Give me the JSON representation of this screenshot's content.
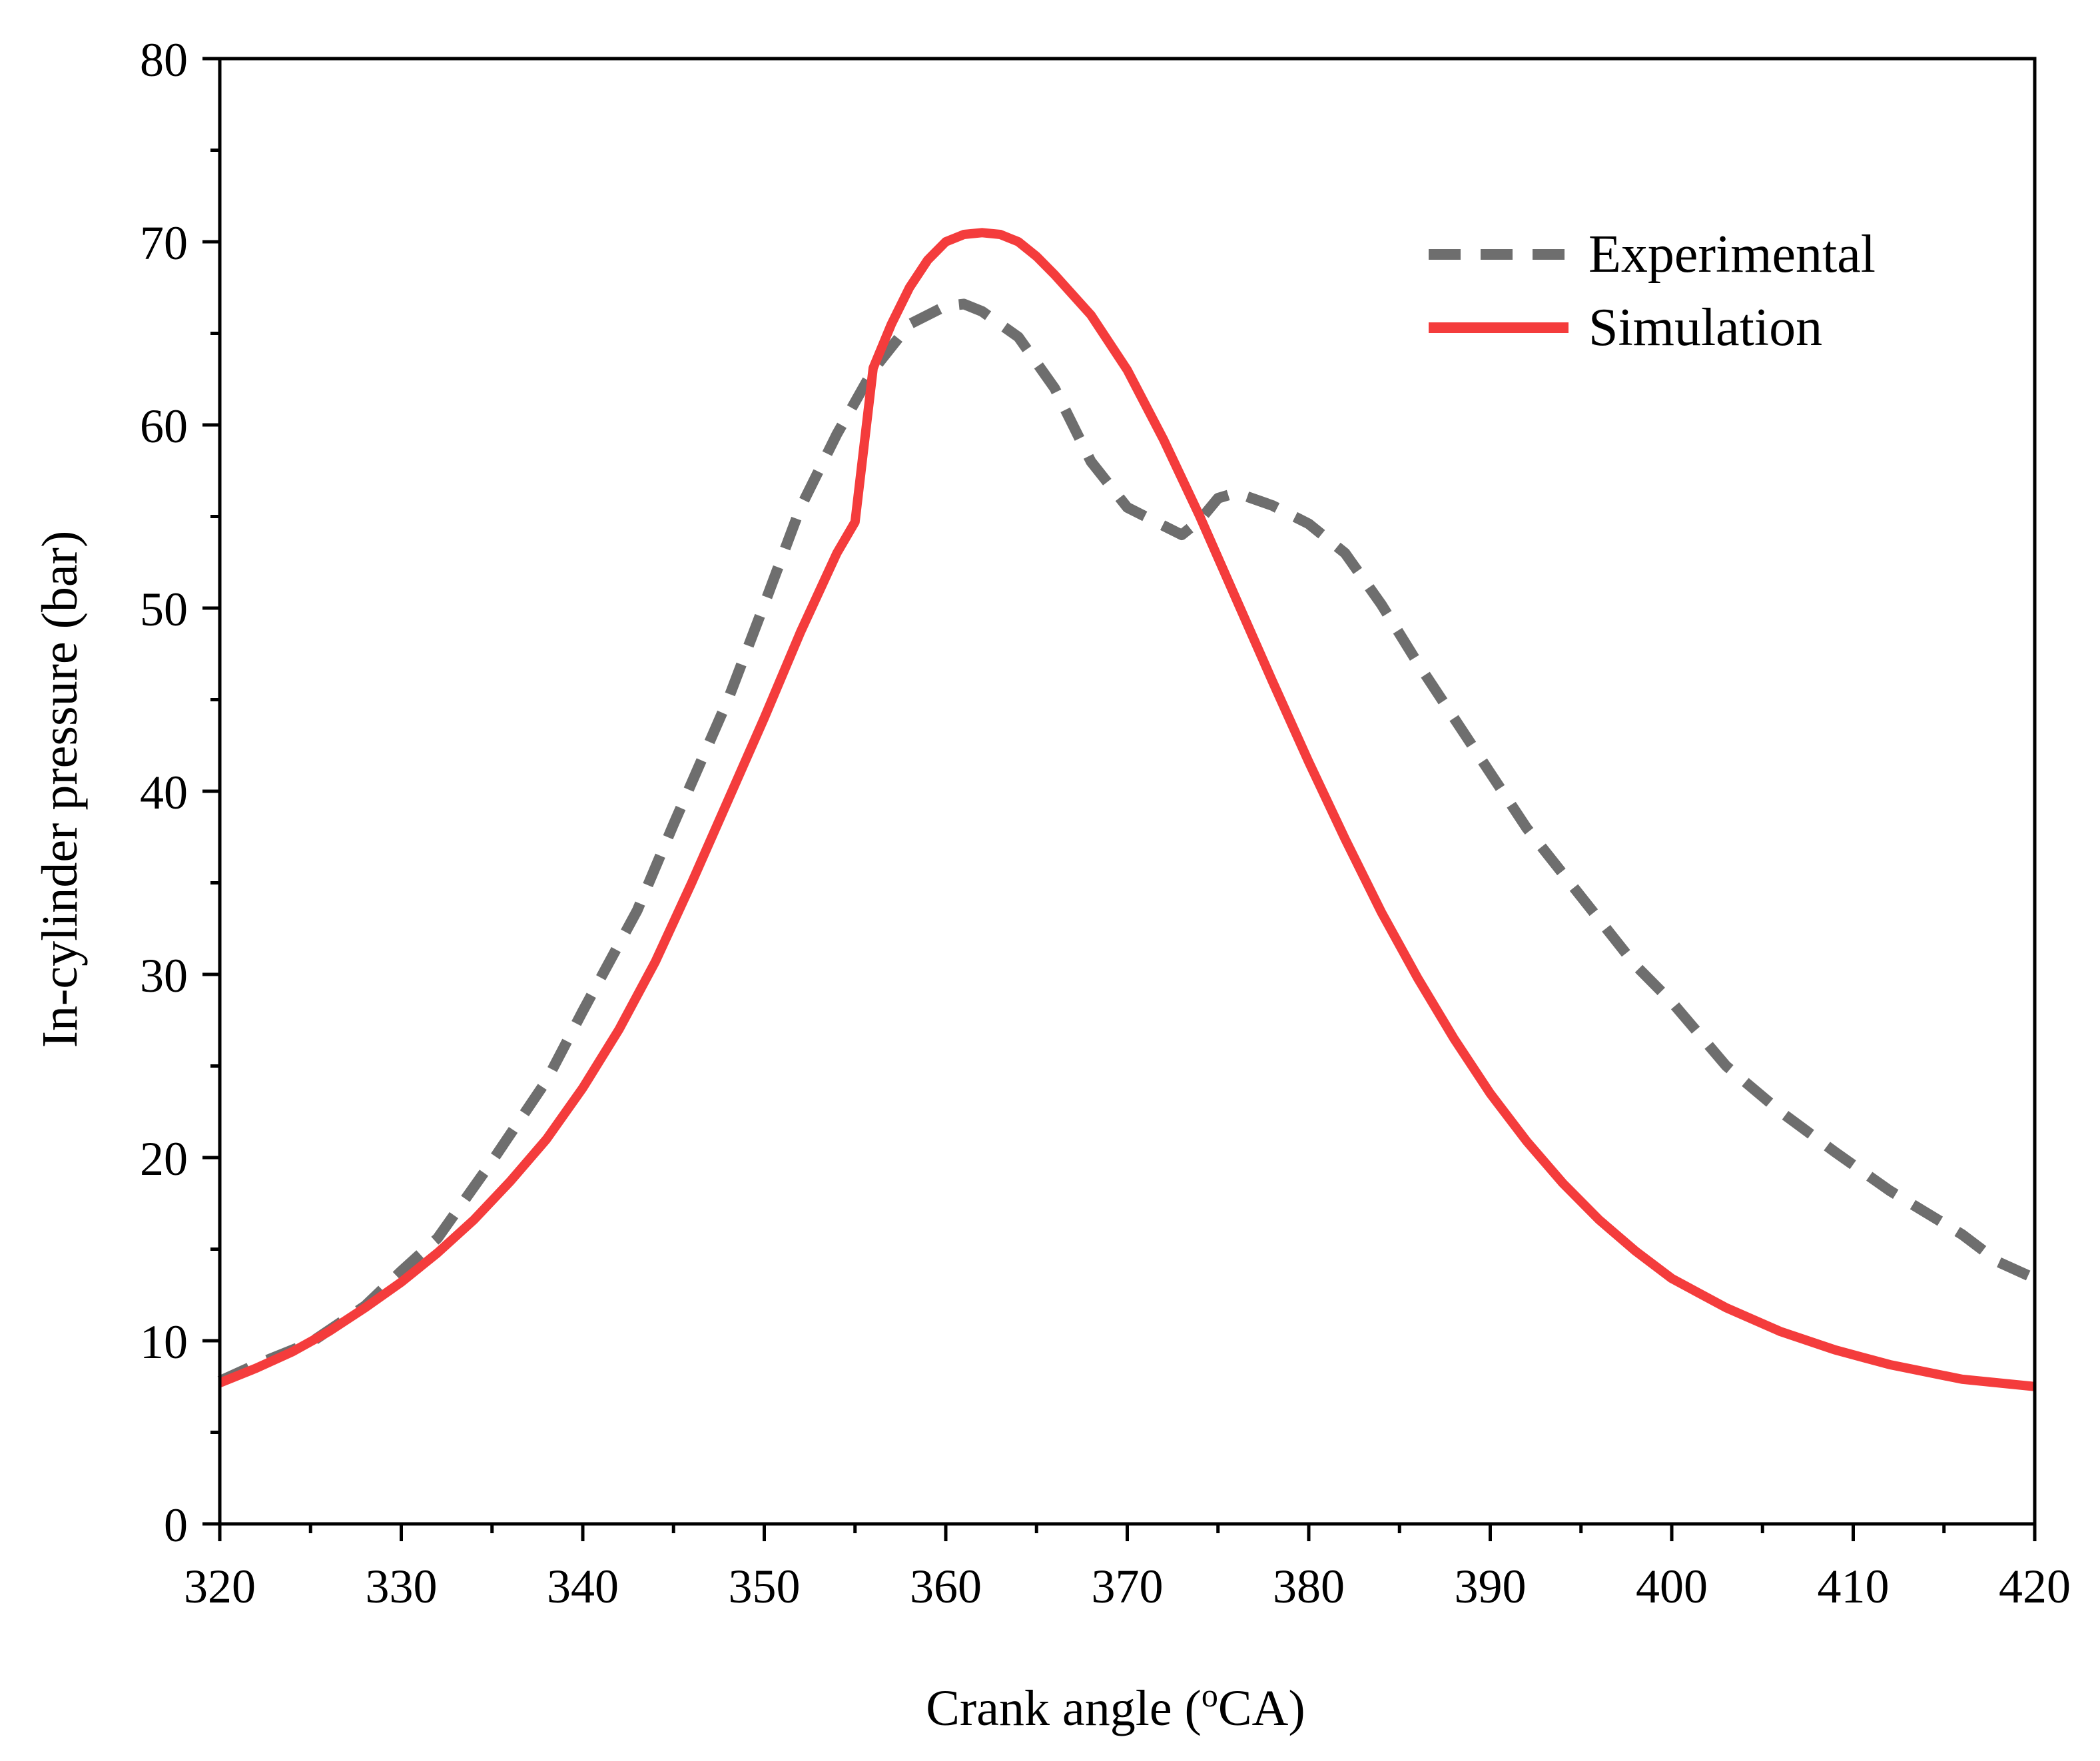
{
  "chart_data": {
    "type": "line",
    "title": "",
    "xlabel": "Crank angle (",
    "xlabel_sup": "o",
    "xlabel_tail": "CA)",
    "ylabel": "In-cylinder pressure (bar)",
    "xlim": [
      320,
      420
    ],
    "ylim": [
      0,
      80
    ],
    "xticks": [
      320,
      330,
      340,
      350,
      360,
      370,
      380,
      390,
      400,
      410,
      420
    ],
    "yticks": [
      0,
      10,
      20,
      30,
      40,
      50,
      60,
      70,
      80
    ],
    "xtick_labels": [
      "320",
      "330",
      "340",
      "350",
      "360",
      "370",
      "380",
      "390",
      "400",
      "410",
      "420"
    ],
    "ytick_labels": [
      "0",
      "10",
      "20",
      "30",
      "40",
      "50",
      "60",
      "70",
      "80"
    ],
    "legend_position": "top-right",
    "series": [
      {
        "name": "Experimental",
        "style": "dashed",
        "color": "#6e6e6e",
        "x": [
          320,
          322,
          325,
          328,
          330,
          332,
          335,
          338,
          340,
          343,
          345,
          348,
          350,
          352,
          354,
          356,
          358,
          360,
          361,
          362,
          363,
          364,
          366,
          368,
          370,
          372,
          373,
          374,
          375,
          376,
          378,
          380,
          382,
          384,
          386,
          388,
          390,
          392,
          394,
          396,
          398,
          400,
          403,
          406,
          409,
          412,
          414,
          416,
          418,
          420
        ],
        "y": [
          7.8,
          8.7,
          9.9,
          11.9,
          13.8,
          15.6,
          19.8,
          24.2,
          28.0,
          33.5,
          38.2,
          45.0,
          50.2,
          55.5,
          59.5,
          63.0,
          65.5,
          66.5,
          66.6,
          66.2,
          65.5,
          64.8,
          62.0,
          58.0,
          55.5,
          54.5,
          54.0,
          54.8,
          56.0,
          56.3,
          55.6,
          54.6,
          53.0,
          50.2,
          47.0,
          44.0,
          41.0,
          38.0,
          35.5,
          33.0,
          30.5,
          28.5,
          25.0,
          22.5,
          20.3,
          18.2,
          17.0,
          15.8,
          14.3,
          13.4
        ]
      },
      {
        "name": "Simulation",
        "style": "solid",
        "color": "#f43c3c",
        "x": [
          320,
          322,
          324,
          326,
          328,
          330,
          332,
          334,
          336,
          338,
          340,
          342,
          344,
          346,
          348,
          350,
          352,
          354,
          355,
          356,
          357,
          358,
          359,
          360,
          361,
          362,
          363,
          364,
          365,
          366,
          368,
          370,
          372,
          374,
          376,
          378,
          380,
          382,
          384,
          386,
          388,
          390,
          392,
          394,
          396,
          398,
          400,
          403,
          406,
          409,
          412,
          416,
          420
        ],
        "y": [
          7.7,
          8.5,
          9.4,
          10.5,
          11.8,
          13.2,
          14.8,
          16.6,
          18.7,
          21.0,
          23.8,
          27.0,
          30.7,
          35.0,
          39.5,
          44.0,
          48.7,
          53.0,
          54.7,
          63.1,
          65.5,
          67.5,
          69.0,
          70.0,
          70.4,
          70.5,
          70.4,
          70.0,
          69.2,
          68.2,
          66.0,
          63.0,
          59.2,
          55.0,
          50.5,
          46.0,
          41.6,
          37.4,
          33.4,
          29.8,
          26.5,
          23.5,
          20.9,
          18.6,
          16.6,
          14.9,
          13.4,
          11.8,
          10.5,
          9.5,
          8.7,
          7.9,
          7.5
        ]
      }
    ]
  }
}
